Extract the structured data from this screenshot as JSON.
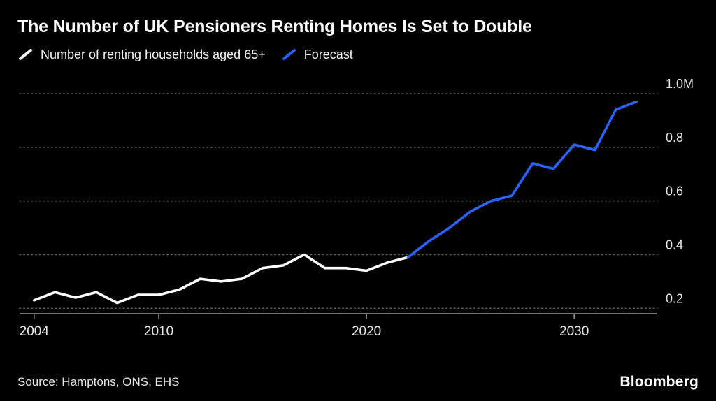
{
  "header": {
    "title": "The Number of UK Pensioners Renting Homes Is Set to Double"
  },
  "footer": {
    "source": "Source: Hamptons, ONS, EHS",
    "brand": "Bloomberg"
  },
  "colors": {
    "background": "#000000",
    "history": "#ffffff",
    "forecast": "#2962ff",
    "gridline": "#5f5f5f",
    "axis": "#9a9a9a",
    "axis_label": "#e8e8e8"
  },
  "chart_data": {
    "type": "line",
    "title": "The Number of UK Pensioners Renting Homes Is Set to Double",
    "xlabel": "",
    "ylabel": "",
    "grid": "horizontal-dotted",
    "legend_position": "top-left",
    "x_ticks": [
      2004,
      2010,
      2020,
      2030
    ],
    "y_ticks": [
      {
        "value": 0.2,
        "label": "0.2"
      },
      {
        "value": 0.4,
        "label": "0.4"
      },
      {
        "value": 0.6,
        "label": "0.6"
      },
      {
        "value": 0.8,
        "label": "0.8"
      },
      {
        "value": 1.0,
        "label": "1.0M"
      }
    ],
    "xlim": [
      2003.3,
      2034
    ],
    "ylim": [
      0.18,
      1.06
    ],
    "series": [
      {
        "name": "Number of renting households aged 65+",
        "color": "#ffffff",
        "x": [
          2004,
          2005,
          2006,
          2007,
          2008,
          2009,
          2010,
          2011,
          2012,
          2013,
          2014,
          2015,
          2016,
          2017,
          2018,
          2019,
          2020,
          2021,
          2022
        ],
        "values": [
          0.23,
          0.26,
          0.24,
          0.26,
          0.22,
          0.25,
          0.25,
          0.27,
          0.31,
          0.3,
          0.31,
          0.35,
          0.36,
          0.4,
          0.35,
          0.35,
          0.34,
          0.37,
          0.39
        ]
      },
      {
        "name": "Forecast",
        "color": "#2962ff",
        "x": [
          2022,
          2023,
          2024,
          2025,
          2026,
          2027,
          2028,
          2029,
          2030,
          2031,
          2032,
          2033
        ],
        "values": [
          0.39,
          0.45,
          0.5,
          0.56,
          0.6,
          0.62,
          0.74,
          0.72,
          0.81,
          0.79,
          0.94,
          0.97
        ]
      }
    ]
  }
}
